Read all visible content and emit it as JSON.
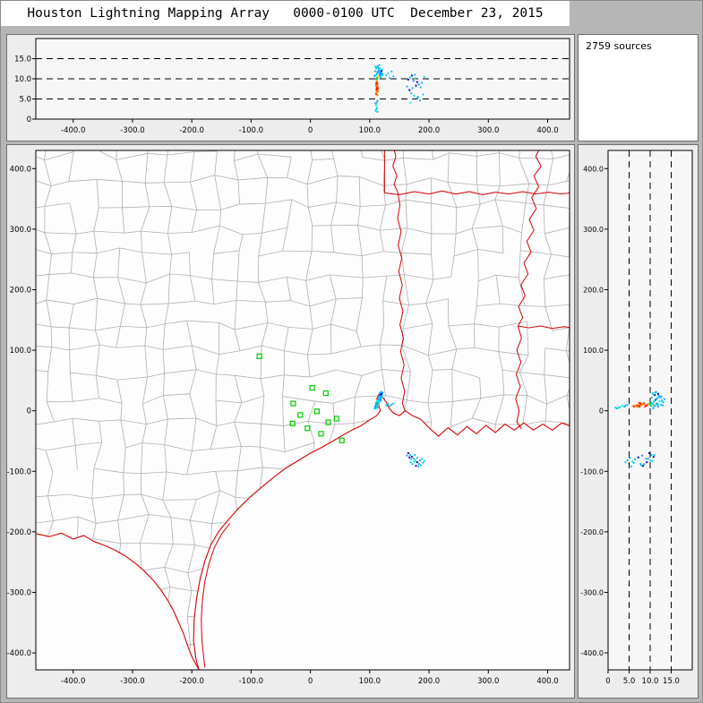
{
  "title": "Houston Lightning Mapping Array   0000-0100 UTC  December 23, 2015",
  "sources_label": "2759 sources",
  "chart_data": {
    "type": "scatter",
    "sources_count": 2759,
    "legend": "none",
    "grid": "dashed altitude guides at 5, 10, 15 km",
    "axes": {
      "ew": {
        "min": -463,
        "max": 437,
        "ticks": [
          -400,
          -300,
          -200,
          -100,
          0,
          100,
          200,
          300,
          400
        ],
        "labels": [
          "-400.0",
          "-300.0",
          "-200.0",
          "-100.0",
          "0",
          "100.0",
          "200.0",
          "300.0",
          "400.0"
        ]
      },
      "ns": {
        "min": -428,
        "max": 430,
        "ticks": [
          -400,
          -300,
          -200,
          -100,
          0,
          100,
          200,
          300,
          400
        ],
        "labels": [
          "-400.0",
          "-300.0",
          "-200.0",
          "-100.0",
          "0",
          "100.0",
          "200.0",
          "300.0",
          "400.0"
        ]
      },
      "alt": {
        "min": 0,
        "max": 20,
        "ticks": [
          0,
          5,
          10,
          15
        ],
        "labels": [
          "0",
          "5.0",
          "10.0",
          "15.0"
        ],
        "guides": [
          5,
          10,
          15
        ]
      }
    },
    "palette": [
      "#00bfff",
      "#1e90ff",
      "#0000cd",
      "#00c853",
      "#ff1700",
      "#ff8c00",
      "#00e5ee",
      "#ffd300"
    ],
    "station_color": "#00cc00",
    "border_color": "#d40000",
    "county_color": "#b0b0b0",
    "stations": [
      [
        -86,
        90
      ],
      [
        3,
        38
      ],
      [
        26,
        29
      ],
      [
        -29,
        12
      ],
      [
        11,
        -1
      ],
      [
        -17,
        -7
      ],
      [
        -30,
        -21
      ],
      [
        -5,
        -29
      ],
      [
        18,
        -38
      ],
      [
        44,
        -13
      ],
      [
        30,
        -19
      ],
      [
        53,
        -49
      ]
    ],
    "sources": [
      [
        111,
        7,
        6.2,
        4
      ],
      [
        112,
        8,
        6.8,
        4
      ],
      [
        113,
        9,
        7.3,
        4
      ],
      [
        112,
        10,
        7.9,
        4
      ],
      [
        111,
        11,
        8.3,
        4
      ],
      [
        113,
        7,
        8.8,
        4
      ],
      [
        112,
        6,
        7.1,
        5
      ],
      [
        114,
        8,
        7.6,
        5
      ],
      [
        111,
        9,
        6.5,
        5
      ],
      [
        113,
        11,
        8.1,
        5
      ],
      [
        112,
        12,
        8.6,
        4
      ],
      [
        111,
        13,
        7.4,
        4
      ],
      [
        114,
        10,
        6.9,
        5
      ],
      [
        112,
        9,
        9.2,
        4
      ],
      [
        113,
        8,
        5.9,
        5
      ],
      [
        111,
        8,
        8.9,
        4
      ],
      [
        112,
        11,
        9.4,
        5
      ],
      [
        114,
        12,
        7.7,
        4
      ],
      [
        113,
        13,
        8.4,
        5
      ],
      [
        112,
        7,
        7.5,
        4
      ],
      [
        112,
        9,
        9.8,
        7
      ],
      [
        113,
        10,
        10.1,
        3
      ],
      [
        111,
        12,
        9.9,
        3
      ],
      [
        114,
        9,
        10.4,
        7
      ],
      [
        112,
        13,
        10.2,
        3
      ],
      [
        110,
        5,
        10.8,
        0
      ],
      [
        112,
        8,
        11.2,
        0
      ],
      [
        115,
        12,
        11.6,
        0
      ],
      [
        117,
        15,
        10.9,
        0
      ],
      [
        118,
        18,
        11.3,
        2
      ],
      [
        119,
        21,
        11.8,
        0
      ],
      [
        120,
        24,
        12.1,
        0
      ],
      [
        118,
        26,
        11.1,
        2
      ],
      [
        117,
        29,
        10.6,
        0
      ],
      [
        119,
        31,
        11.4,
        1
      ],
      [
        116,
        22,
        12.4,
        0
      ],
      [
        114,
        17,
        12.8,
        0
      ],
      [
        113,
        14,
        13.1,
        0
      ],
      [
        111,
        10,
        12.6,
        0
      ],
      [
        109,
        7,
        11.9,
        1
      ],
      [
        108,
        4,
        10.7,
        0
      ],
      [
        121,
        27,
        10.8,
        6
      ],
      [
        122,
        30,
        11.2,
        0
      ],
      [
        116,
        19,
        13.4,
        0
      ],
      [
        115,
        16,
        12.2,
        6
      ],
      [
        113,
        12,
        11.7,
        1
      ],
      [
        117,
        24,
        12.6,
        0
      ],
      [
        120,
        28,
        11.9,
        2
      ],
      [
        118,
        22,
        10.4,
        0
      ],
      [
        110,
        9,
        13.0,
        0
      ],
      [
        112,
        15,
        12.9,
        6
      ],
      [
        114,
        20,
        11.5,
        0
      ],
      [
        116,
        25,
        12.0,
        1
      ],
      [
        119,
        17,
        11.1,
        0
      ],
      [
        121,
        23,
        12.3,
        0
      ],
      [
        110,
        4,
        2.1,
        0
      ],
      [
        112,
        6,
        2.8,
        0
      ],
      [
        111,
        8,
        3.4,
        6
      ],
      [
        113,
        5,
        1.8,
        0
      ],
      [
        112,
        9,
        4.2,
        0
      ],
      [
        110,
        7,
        3.9,
        1
      ],
      [
        113,
        10,
        4.6,
        0
      ],
      [
        111,
        5,
        2.4,
        6
      ],
      [
        128,
        9,
        10.9,
        0
      ],
      [
        131,
        11,
        11.4,
        6
      ],
      [
        134,
        8,
        10.2,
        0
      ],
      [
        137,
        10,
        11.8,
        0
      ],
      [
        140,
        12,
        10.6,
        0
      ],
      [
        165,
        -70,
        9.8,
        2
      ],
      [
        168,
        -73,
        10.3,
        0
      ],
      [
        171,
        -76,
        10.8,
        2
      ],
      [
        174,
        -79,
        9.5,
        1
      ],
      [
        177,
        -82,
        10.1,
        0
      ],
      [
        180,
        -85,
        9.2,
        2
      ],
      [
        183,
        -88,
        8.6,
        1
      ],
      [
        186,
        -90,
        7.9,
        0
      ],
      [
        170,
        -80,
        6.4,
        0
      ],
      [
        175,
        -84,
        5.8,
        6
      ],
      [
        180,
        -78,
        5.2,
        0
      ],
      [
        185,
        -82,
        4.6,
        1
      ],
      [
        190,
        -86,
        6.1,
        0
      ],
      [
        167,
        -77,
        7.2,
        2
      ],
      [
        172,
        -88,
        7.7,
        0
      ],
      [
        178,
        -91,
        8.3,
        2
      ],
      [
        188,
        -79,
        9.0,
        0
      ],
      [
        192,
        -83,
        10.5,
        6
      ],
      [
        163,
        -74,
        8.1,
        1
      ],
      [
        176,
        -73,
        11.0,
        0
      ],
      [
        182,
        -92,
        5.5,
        0
      ],
      [
        169,
        -85,
        4.1,
        6
      ]
    ],
    "map": {
      "lines": [
        [
          [
            125,
            360
          ],
          [
            150,
            357
          ],
          [
            175,
            362
          ],
          [
            200,
            358
          ],
          [
            222,
            363
          ],
          [
            245,
            358
          ],
          [
            268,
            362
          ],
          [
            290,
            357
          ],
          [
            312,
            361
          ],
          [
            335,
            358
          ],
          [
            358,
            362
          ],
          [
            380,
            358
          ],
          [
            402,
            361
          ],
          [
            422,
            358
          ],
          [
            440,
            360
          ]
        ],
        [
          [
            125,
            360
          ],
          [
            125,
            436
          ]
        ],
        [
          [
            140,
            436
          ],
          [
            144,
            420
          ],
          [
            139,
            404
          ],
          [
            146,
            388
          ],
          [
            141,
            374
          ],
          [
            147,
            362
          ]
        ],
        [
          [
            147,
            362
          ],
          [
            151,
            340
          ],
          [
            147,
            318
          ],
          [
            153,
            296
          ],
          [
            148,
            274
          ],
          [
            154,
            252
          ],
          [
            149,
            230
          ],
          [
            155,
            208
          ],
          [
            150,
            186
          ],
          [
            156,
            164
          ],
          [
            151,
            142
          ],
          [
            157,
            120
          ],
          [
            152,
            98
          ],
          [
            158,
            76
          ],
          [
            153,
            54
          ],
          [
            159,
            32
          ],
          [
            155,
            12
          ],
          [
            160,
            0
          ]
        ],
        [
          [
            388,
            436
          ],
          [
            380,
            420
          ],
          [
            389,
            404
          ],
          [
            377,
            388
          ],
          [
            385,
            370
          ],
          [
            373,
            352
          ],
          [
            381,
            334
          ],
          [
            369,
            316
          ],
          [
            377,
            298
          ],
          [
            365,
            280
          ],
          [
            372,
            262
          ],
          [
            360,
            244
          ],
          [
            367,
            226
          ],
          [
            355,
            208
          ],
          [
            362,
            190
          ],
          [
            351,
            172
          ],
          [
            358,
            154
          ],
          [
            350,
            140
          ]
        ],
        [
          [
            350,
            140
          ],
          [
            368,
            137
          ],
          [
            388,
            140
          ],
          [
            408,
            136
          ],
          [
            428,
            139
          ],
          [
            440,
            137
          ]
        ],
        [
          [
            350,
            140
          ],
          [
            356,
            120
          ],
          [
            348,
            100
          ],
          [
            355,
            80
          ],
          [
            347,
            60
          ],
          [
            354,
            40
          ],
          [
            346,
            20
          ],
          [
            352,
            0
          ],
          [
            348,
            -18
          ],
          [
            356,
            -30
          ]
        ],
        [
          [
            -136,
            -186
          ],
          [
            -150,
            -204
          ],
          [
            -162,
            -226
          ],
          [
            -171,
            -252
          ],
          [
            -178,
            -282
          ],
          [
            -182,
            -312
          ],
          [
            -184,
            -345
          ],
          [
            -183,
            -378
          ],
          [
            -180,
            -406
          ],
          [
            -178,
            -424
          ]
        ]
      ],
      "coast": [
        [
          440,
          -26
        ],
        [
          424,
          -20
        ],
        [
          408,
          -32
        ],
        [
          392,
          -22
        ],
        [
          376,
          -32
        ],
        [
          360,
          -20
        ],
        [
          344,
          -32
        ],
        [
          328,
          -22
        ],
        [
          312,
          -36
        ],
        [
          296,
          -24
        ],
        [
          280,
          -38
        ],
        [
          264,
          -26
        ],
        [
          248,
          -40
        ],
        [
          232,
          -28
        ],
        [
          216,
          -42
        ],
        [
          200,
          -28
        ],
        [
          186,
          -14
        ],
        [
          172,
          -8
        ],
        [
          160,
          0
        ],
        [
          150,
          -8
        ],
        [
          140,
          -4
        ],
        [
          133,
          4
        ],
        [
          128,
          14
        ],
        [
          122,
          22
        ],
        [
          116,
          28
        ],
        [
          112,
          20
        ],
        [
          115,
          10
        ],
        [
          118,
          0
        ],
        [
          112,
          -8
        ],
        [
          100,
          -15
        ],
        [
          85,
          -25
        ],
        [
          70,
          -32
        ],
        [
          55,
          -40
        ],
        [
          38,
          -50
        ],
        [
          20,
          -60
        ],
        [
          0,
          -70
        ],
        [
          -20,
          -82
        ],
        [
          -42,
          -95
        ],
        [
          -62,
          -110
        ],
        [
          -82,
          -126
        ],
        [
          -102,
          -143
        ],
        [
          -122,
          -162
        ],
        [
          -140,
          -182
        ],
        [
          -155,
          -200
        ],
        [
          -168,
          -222
        ],
        [
          -178,
          -248
        ],
        [
          -186,
          -278
        ],
        [
          -192,
          -310
        ],
        [
          -196,
          -345
        ],
        [
          -197,
          -380
        ],
        [
          -193,
          -410
        ],
        [
          -188,
          -428
        ]
      ],
      "rio": [
        [
          -462,
          -203
        ],
        [
          -440,
          -208
        ],
        [
          -420,
          -202
        ],
        [
          -400,
          -212
        ],
        [
          -382,
          -206
        ],
        [
          -365,
          -216
        ],
        [
          -348,
          -222
        ],
        [
          -330,
          -230
        ],
        [
          -312,
          -240
        ],
        [
          -295,
          -252
        ],
        [
          -280,
          -265
        ],
        [
          -265,
          -280
        ],
        [
          -252,
          -296
        ],
        [
          -240,
          -314
        ],
        [
          -230,
          -332
        ],
        [
          -222,
          -350
        ],
        [
          -214,
          -368
        ],
        [
          -207,
          -388
        ],
        [
          -200,
          -406
        ],
        [
          -188,
          -428
        ]
      ]
    }
  }
}
